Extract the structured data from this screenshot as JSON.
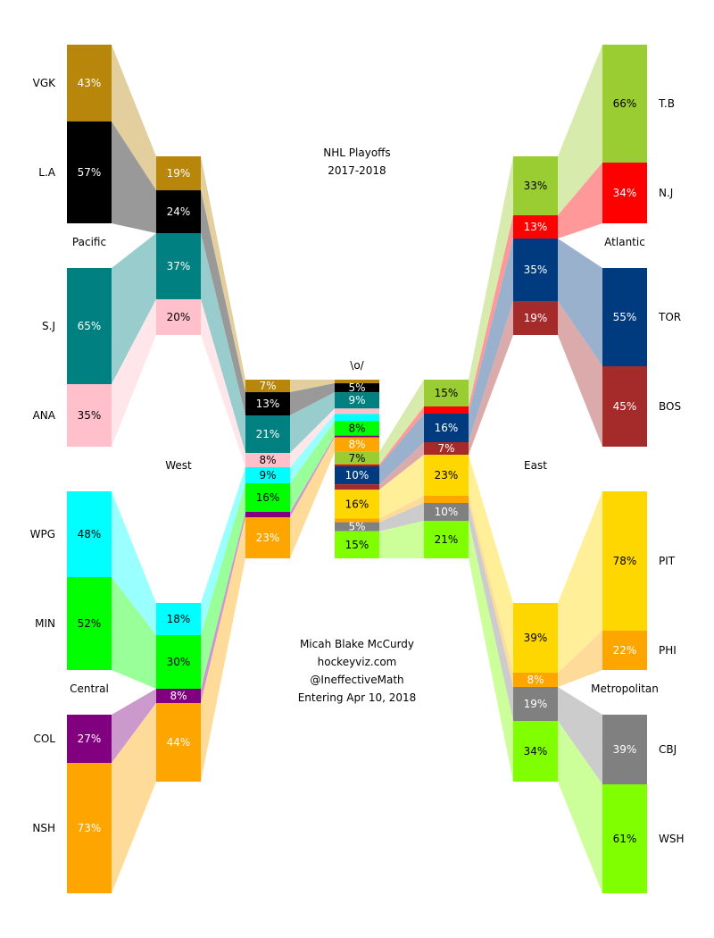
{
  "title": "NHL Playoffs",
  "subtitle": "2017-2018",
  "center_label": "\\o/",
  "credits": [
    "Micah Blake McCurdy",
    "hockeyviz.com",
    "@IneffectiveMath",
    "Entering Apr 10, 2018"
  ],
  "division_labels": {
    "pacific": "Pacific",
    "central": "Central",
    "atlantic": "Atlantic",
    "metropolitan": "Metropolitan"
  },
  "conference_labels": {
    "west": "West",
    "east": "East"
  },
  "team_colors": {
    "VGK": "#b8860b",
    "LA": "#000000",
    "SJ": "#008080",
    "ANA": "#ffc0cb",
    "WPG": "#00ffff",
    "MIN": "#00ff00",
    "COL": "#800080",
    "NSH": "#ffa500",
    "TB": "#9acd32",
    "NJ": "#ff0000",
    "TOR": "#003b7f",
    "BOS": "#a52a2a",
    "PIT": "#ffd700",
    "PHI": "#ffa500",
    "CBJ": "#808080",
    "WSH": "#7fff00"
  },
  "chart_data": {
    "type": "bracket",
    "round1": [
      {
        "team": "VGK",
        "label": "VGK",
        "pct": 43
      },
      {
        "team": "LA",
        "label": "L.A",
        "pct": 57
      },
      {
        "team": "SJ",
        "label": "S.J",
        "pct": 65
      },
      {
        "team": "ANA",
        "label": "ANA",
        "pct": 35
      },
      {
        "team": "WPG",
        "label": "WPG",
        "pct": 48
      },
      {
        "team": "MIN",
        "label": "MIN",
        "pct": 52
      },
      {
        "team": "COL",
        "label": "COL",
        "pct": 27
      },
      {
        "team": "NSH",
        "label": "NSH",
        "pct": 73
      },
      {
        "team": "TB",
        "label": "T.B",
        "pct": 66
      },
      {
        "team": "NJ",
        "label": "N.J",
        "pct": 34
      },
      {
        "team": "TOR",
        "label": "TOR",
        "pct": 55
      },
      {
        "team": "BOS",
        "label": "BOS",
        "pct": 45
      },
      {
        "team": "PIT",
        "label": "PIT",
        "pct": 78
      },
      {
        "team": "PHI",
        "label": "PHI",
        "pct": 22
      },
      {
        "team": "CBJ",
        "label": "CBJ",
        "pct": 39
      },
      {
        "team": "WSH",
        "label": "WSH",
        "pct": 61
      }
    ],
    "round2": {
      "pacific": [
        {
          "team": "VGK",
          "pct": 19
        },
        {
          "team": "LA",
          "pct": 24
        },
        {
          "team": "SJ",
          "pct": 37
        },
        {
          "team": "ANA",
          "pct": 20
        }
      ],
      "central": [
        {
          "team": "WPG",
          "pct": 18
        },
        {
          "team": "MIN",
          "pct": 30
        },
        {
          "team": "COL",
          "pct": 8
        },
        {
          "team": "NSH",
          "pct": 44
        }
      ],
      "atlantic": [
        {
          "team": "TB",
          "pct": 33
        },
        {
          "team": "NJ",
          "pct": 13
        },
        {
          "team": "TOR",
          "pct": 35
        },
        {
          "team": "BOS",
          "pct": 19
        }
      ],
      "metropolitan": [
        {
          "team": "PIT",
          "pct": 39
        },
        {
          "team": "PHI",
          "pct": 8
        },
        {
          "team": "CBJ",
          "pct": 19
        },
        {
          "team": "WSH",
          "pct": 34
        }
      ]
    },
    "conference_final": {
      "west": [
        {
          "team": "VGK",
          "pct": 7
        },
        {
          "team": "LA",
          "pct": 13
        },
        {
          "team": "SJ",
          "pct": 21
        },
        {
          "team": "ANA",
          "pct": 8
        },
        {
          "team": "WPG",
          "pct": 9
        },
        {
          "team": "MIN",
          "pct": 16
        },
        {
          "team": "COL",
          "pct": 3
        },
        {
          "team": "NSH",
          "pct": 23
        }
      ],
      "east": [
        {
          "team": "TB",
          "pct": 15
        },
        {
          "team": "NJ",
          "pct": 4
        },
        {
          "team": "TOR",
          "pct": 16
        },
        {
          "team": "BOS",
          "pct": 7
        },
        {
          "team": "PIT",
          "pct": 23
        },
        {
          "team": "PHI",
          "pct": 4
        },
        {
          "team": "CBJ",
          "pct": 10
        },
        {
          "team": "WSH",
          "pct": 21
        }
      ]
    },
    "champion": [
      {
        "team": "VGK",
        "pct": 2
      },
      {
        "team": "LA",
        "pct": 5
      },
      {
        "team": "SJ",
        "pct": 9
      },
      {
        "team": "ANA",
        "pct": 3
      },
      {
        "team": "WPG",
        "pct": 4
      },
      {
        "team": "MIN",
        "pct": 8
      },
      {
        "team": "COL",
        "pct": 1
      },
      {
        "team": "NSH",
        "pct": 8
      },
      {
        "team": "TB",
        "pct": 7
      },
      {
        "team": "NJ",
        "pct": 1
      },
      {
        "team": "TOR",
        "pct": 10
      },
      {
        "team": "BOS",
        "pct": 3
      },
      {
        "team": "PIT",
        "pct": 16
      },
      {
        "team": "PHI",
        "pct": 2
      },
      {
        "team": "CBJ",
        "pct": 5
      },
      {
        "team": "WSH",
        "pct": 15
      }
    ],
    "min_label_pct": 5
  }
}
